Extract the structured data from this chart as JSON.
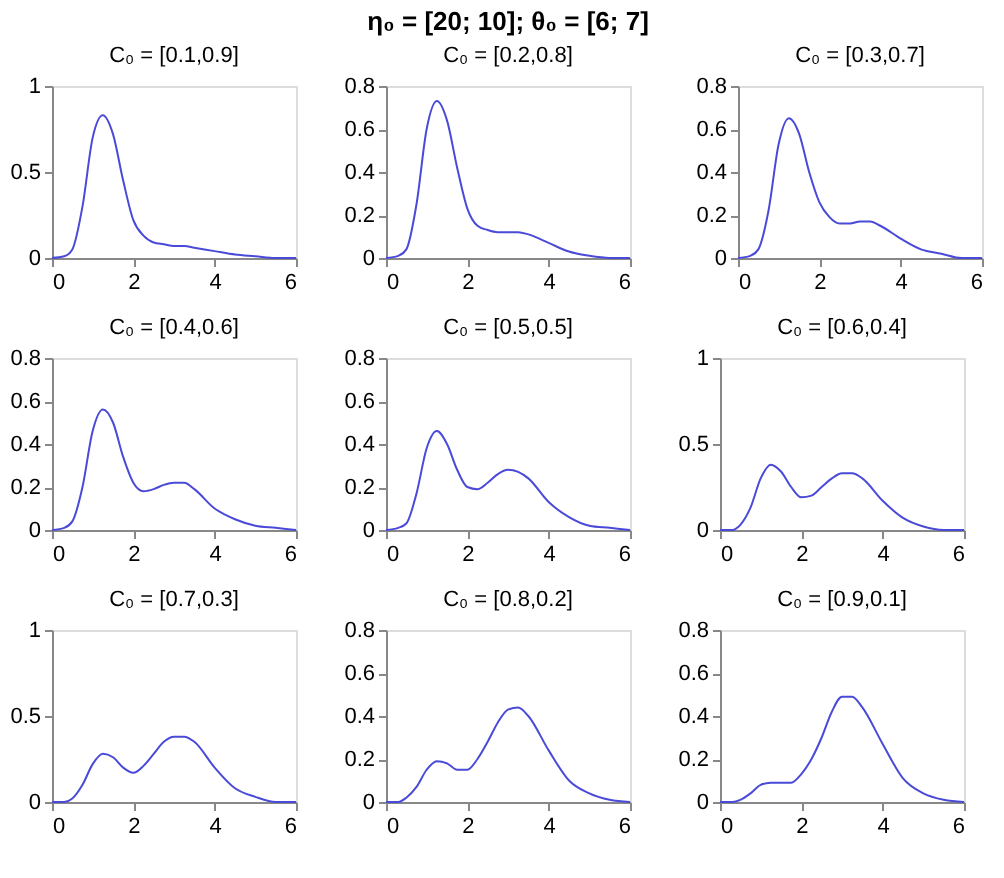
{
  "chart_data": [
    {
      "type": "line",
      "subtitle": "C₀  = [0.1,0.9]",
      "x": [
        0,
        0.3,
        0.5,
        0.75,
        1,
        1.25,
        1.5,
        1.75,
        2,
        2.25,
        2.5,
        2.75,
        3,
        3.25,
        3.5,
        4,
        4.5,
        5,
        5.5,
        6
      ],
      "series": [
        {
          "color": "#4a4ad8",
          "values": [
            0,
            0.01,
            0.05,
            0.3,
            0.7,
            0.83,
            0.72,
            0.45,
            0.22,
            0.13,
            0.09,
            0.08,
            0.07,
            0.07,
            0.06,
            0.04,
            0.02,
            0.01,
            0,
            0
          ]
        }
      ],
      "xlim": [
        0,
        6
      ],
      "xticks": [
        0,
        2,
        4,
        6
      ],
      "ylim": [
        0,
        1
      ],
      "yticks": [
        0,
        0.5,
        1
      ],
      "grid": false
    },
    {
      "type": "line",
      "title": "η₀ = [20; 10]; θ₀ = [6; 7]",
      "subtitle": "C₀  = [0.2,0.8]",
      "x": [
        0,
        0.3,
        0.5,
        0.75,
        1,
        1.25,
        1.5,
        1.75,
        2,
        2.25,
        2.5,
        2.75,
        3,
        3.25,
        3.5,
        4,
        4.5,
        5,
        5.5,
        6
      ],
      "series": [
        {
          "color": "#4a4ad8",
          "values": [
            0,
            0.01,
            0.04,
            0.25,
            0.6,
            0.73,
            0.64,
            0.42,
            0.23,
            0.15,
            0.13,
            0.12,
            0.12,
            0.12,
            0.11,
            0.07,
            0.03,
            0.01,
            0,
            0
          ]
        }
      ],
      "xlim": [
        0,
        6
      ],
      "xticks": [
        0,
        2,
        4,
        6
      ],
      "ylim": [
        0,
        0.8
      ],
      "yticks": [
        0,
        0.2,
        0.4,
        0.6,
        0.8
      ],
      "grid": false
    },
    {
      "type": "line",
      "subtitle": "C₀  = [0.3,0.7]",
      "x": [
        0,
        0.3,
        0.5,
        0.75,
        1,
        1.25,
        1.5,
        1.75,
        2,
        2.25,
        2.5,
        2.75,
        3,
        3.25,
        3.5,
        4,
        4.5,
        5,
        5.5,
        6
      ],
      "series": [
        {
          "color": "#4a4ad8",
          "values": [
            0,
            0.01,
            0.04,
            0.22,
            0.53,
            0.65,
            0.58,
            0.4,
            0.26,
            0.19,
            0.16,
            0.16,
            0.17,
            0.17,
            0.15,
            0.09,
            0.04,
            0.02,
            0,
            0
          ]
        }
      ],
      "xlim": [
        0,
        6
      ],
      "xticks": [
        0,
        2,
        4,
        6
      ],
      "ylim": [
        0,
        0.8
      ],
      "yticks": [
        0,
        0.2,
        0.4,
        0.6,
        0.8
      ],
      "grid": false
    },
    {
      "type": "line",
      "subtitle": "C₀  = [0.4,0.6]",
      "x": [
        0,
        0.3,
        0.5,
        0.75,
        1,
        1.25,
        1.5,
        1.75,
        2,
        2.25,
        2.5,
        2.75,
        3,
        3.25,
        3.5,
        4,
        4.5,
        5,
        5.5,
        6
      ],
      "series": [
        {
          "color": "#4a4ad8",
          "values": [
            0,
            0.01,
            0.04,
            0.2,
            0.46,
            0.56,
            0.5,
            0.34,
            0.22,
            0.18,
            0.19,
            0.21,
            0.22,
            0.22,
            0.19,
            0.1,
            0.05,
            0.02,
            0.01,
            0
          ]
        }
      ],
      "xlim": [
        0,
        6
      ],
      "xticks": [
        0,
        2,
        4,
        6
      ],
      "ylim": [
        0,
        0.8
      ],
      "yticks": [
        0,
        0.2,
        0.4,
        0.6,
        0.8
      ],
      "grid": false
    },
    {
      "type": "line",
      "subtitle": "C₀  = [0.5,0.5]",
      "x": [
        0,
        0.3,
        0.5,
        0.75,
        1,
        1.25,
        1.5,
        1.75,
        2,
        2.25,
        2.5,
        2.75,
        3,
        3.25,
        3.5,
        4,
        4.5,
        5,
        5.5,
        6
      ],
      "series": [
        {
          "color": "#4a4ad8",
          "values": [
            0,
            0.01,
            0.03,
            0.17,
            0.38,
            0.46,
            0.4,
            0.28,
            0.2,
            0.19,
            0.22,
            0.26,
            0.28,
            0.27,
            0.24,
            0.13,
            0.06,
            0.02,
            0.01,
            0
          ]
        }
      ],
      "xlim": [
        0,
        6
      ],
      "xticks": [
        0,
        2,
        4,
        6
      ],
      "ylim": [
        0,
        0.8
      ],
      "yticks": [
        0,
        0.2,
        0.4,
        0.6,
        0.8
      ],
      "grid": false
    },
    {
      "type": "line",
      "subtitle": "C₀  = [0.6,0.4]",
      "x": [
        0,
        0.3,
        0.5,
        0.75,
        1,
        1.25,
        1.5,
        1.75,
        2,
        2.25,
        2.5,
        2.75,
        3,
        3.25,
        3.5,
        4,
        4.5,
        5,
        5.5,
        6
      ],
      "series": [
        {
          "color": "#4a4ad8",
          "values": [
            0,
            0,
            0.03,
            0.13,
            0.3,
            0.38,
            0.34,
            0.25,
            0.19,
            0.2,
            0.25,
            0.3,
            0.33,
            0.33,
            0.3,
            0.17,
            0.07,
            0.02,
            0,
            0
          ]
        }
      ],
      "xlim": [
        0,
        6
      ],
      "xticks": [
        0,
        2,
        4,
        6
      ],
      "ylim": [
        0,
        1
      ],
      "yticks": [
        0,
        0.5,
        1
      ],
      "grid": false
    },
    {
      "type": "line",
      "subtitle": "C₀  = [0.7,0.3]",
      "x": [
        0,
        0.3,
        0.5,
        0.75,
        1,
        1.25,
        1.5,
        1.75,
        2,
        2.25,
        2.5,
        2.75,
        3,
        3.25,
        3.5,
        4,
        4.5,
        5,
        5.5,
        6
      ],
      "series": [
        {
          "color": "#4a4ad8",
          "values": [
            0,
            0,
            0.02,
            0.1,
            0.22,
            0.28,
            0.26,
            0.2,
            0.17,
            0.21,
            0.28,
            0.35,
            0.38,
            0.38,
            0.35,
            0.2,
            0.08,
            0.03,
            0,
            0
          ]
        }
      ],
      "xlim": [
        0,
        6
      ],
      "xticks": [
        0,
        2,
        4,
        6
      ],
      "ylim": [
        0,
        1
      ],
      "yticks": [
        0,
        0.5,
        1
      ],
      "grid": false
    },
    {
      "type": "line",
      "subtitle": "C₀  = [0.8,0.2]",
      "x": [
        0,
        0.3,
        0.5,
        0.75,
        1,
        1.25,
        1.5,
        1.75,
        2,
        2.25,
        2.5,
        2.75,
        3,
        3.25,
        3.5,
        4,
        4.5,
        5,
        5.5,
        6
      ],
      "series": [
        {
          "color": "#4a4ad8",
          "values": [
            0,
            0,
            0.02,
            0.07,
            0.15,
            0.19,
            0.18,
            0.15,
            0.15,
            0.2,
            0.28,
            0.37,
            0.43,
            0.44,
            0.4,
            0.24,
            0.1,
            0.04,
            0.01,
            0
          ]
        }
      ],
      "xlim": [
        0,
        6
      ],
      "xticks": [
        0,
        2,
        4,
        6
      ],
      "ylim": [
        0,
        0.8
      ],
      "yticks": [
        0,
        0.2,
        0.4,
        0.6,
        0.8
      ],
      "grid": false
    },
    {
      "type": "line",
      "subtitle": "C₀  = [0.9,0.1]",
      "x": [
        0,
        0.3,
        0.5,
        0.75,
        1,
        1.25,
        1.5,
        1.75,
        2,
        2.25,
        2.5,
        2.75,
        3,
        3.25,
        3.5,
        4,
        4.5,
        5,
        5.5,
        6
      ],
      "series": [
        {
          "color": "#4a4ad8",
          "values": [
            0,
            0,
            0.01,
            0.04,
            0.08,
            0.09,
            0.09,
            0.09,
            0.13,
            0.2,
            0.3,
            0.42,
            0.49,
            0.49,
            0.44,
            0.27,
            0.11,
            0.04,
            0.01,
            0
          ]
        }
      ],
      "xlim": [
        0,
        6
      ],
      "xticks": [
        0,
        2,
        4,
        6
      ],
      "ylim": [
        0,
        0.8
      ],
      "yticks": [
        0,
        0.2,
        0.4,
        0.6,
        0.8
      ],
      "grid": false
    }
  ]
}
